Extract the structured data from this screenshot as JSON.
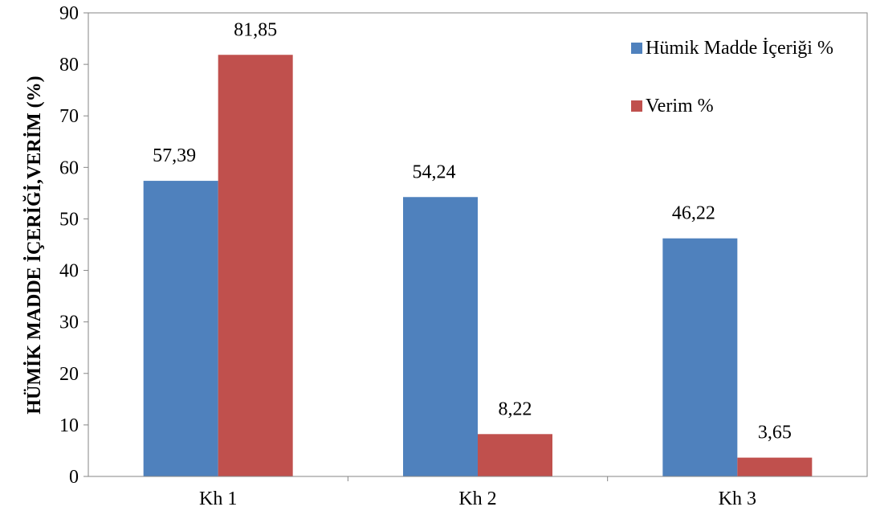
{
  "chart_data": {
    "type": "bar",
    "title": "",
    "xlabel": "",
    "ylabel": "HÜMİK MADDE İÇERİĞİ,VERİM  (%)",
    "categories": [
      "Kh 1",
      "Kh 2",
      "Kh 3"
    ],
    "series": [
      {
        "name": "Hümik Madde İçeriği %",
        "values": [
          57.39,
          54.24,
          46.22
        ],
        "labels": [
          "57,39",
          "54,24",
          "46,22"
        ],
        "color": "#4F81BD"
      },
      {
        "name": "Verim %",
        "values": [
          81.85,
          8.22,
          3.65
        ],
        "labels": [
          "81,85",
          "8,22",
          "3,65"
        ],
        "color": "#C0504D"
      }
    ],
    "ylim": [
      0,
      90
    ],
    "yticks": [
      0,
      10,
      20,
      30,
      40,
      50,
      60,
      70,
      80,
      90
    ],
    "grid": false,
    "legend": "top-right"
  }
}
